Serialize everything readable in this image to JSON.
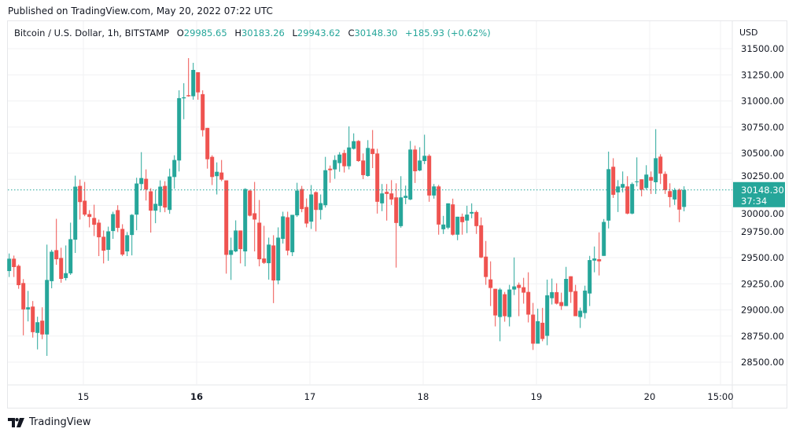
{
  "published": "Published on TradingView.com, May 20, 2022 07:22 UTC",
  "legend": {
    "symbol": "Bitcoin / U.S. Dollar, 1h, BITSTAMP",
    "open_label": "O",
    "open": "29985.65",
    "high_label": "H",
    "high": "30183.26",
    "low_label": "L",
    "low": "29943.62",
    "close_label": "C",
    "close": "30148.30",
    "change": "+185.93 (+0.62%)"
  },
  "currency": "USD",
  "last_price": {
    "price": "30148.30",
    "countdown": "37:34"
  },
  "footer": {
    "brand": "TradingView",
    "logo_icon": "tradingview-logo-icon"
  },
  "colors": {
    "up": "#26a69a",
    "down": "#ef5350",
    "grid": "#f0f1f3"
  },
  "chart_data": {
    "type": "candlestick",
    "interval": "1h",
    "ylim": [
      28250,
      31700
    ],
    "price_ticks": [
      "28500.00",
      "28750.00",
      "29000.00",
      "29250.00",
      "29500.00",
      "29750.00",
      "30000.00",
      "30250.00",
      "30500.00",
      "30750.00",
      "31000.00",
      "31250.00",
      "31500.00"
    ],
    "time_ticks": [
      {
        "label": "15",
        "hour": 16,
        "bold": false
      },
      {
        "label": "16",
        "hour": 40,
        "bold": true
      },
      {
        "label": "17",
        "hour": 64,
        "bold": false
      },
      {
        "label": "18",
        "hour": 88,
        "bold": false
      },
      {
        "label": "19",
        "hour": 112,
        "bold": false
      },
      {
        "label": "20",
        "hour": 136,
        "bold": false
      },
      {
        "label": "15:00",
        "hour": 151,
        "bold": false
      }
    ],
    "grid": true,
    "ohlc": [
      [
        29372,
        29540,
        29315,
        29490
      ],
      [
        29490,
        29520,
        29315,
        29410
      ],
      [
        29422,
        29435,
        29202,
        29237
      ],
      [
        29257,
        29295,
        28757,
        29005
      ],
      [
        29005,
        29182,
        28890,
        29025
      ],
      [
        29032,
        29085,
        28735,
        28787
      ],
      [
        28780,
        28935,
        28622,
        28882
      ],
      [
        28897,
        29025,
        28720,
        28765
      ],
      [
        28765,
        29625,
        28560,
        29287
      ],
      [
        29275,
        29575,
        29207,
        29557
      ],
      [
        29572,
        29872,
        29432,
        29485
      ],
      [
        29497,
        29595,
        29260,
        29297
      ],
      [
        29305,
        29617,
        29282,
        29352
      ],
      [
        29350,
        29835,
        29335,
        29677
      ],
      [
        29672,
        30285,
        29545,
        30180
      ],
      [
        30187,
        30247,
        29865,
        30032
      ],
      [
        30045,
        30225,
        29897,
        29912
      ],
      [
        29917,
        29955,
        29790,
        29890
      ],
      [
        29880,
        30007,
        29707,
        29815
      ],
      [
        29835,
        29865,
        29515,
        29695
      ],
      [
        29700,
        29760,
        29445,
        29567
      ],
      [
        29575,
        29797,
        29470,
        29752
      ],
      [
        29755,
        29940,
        29680,
        29917
      ],
      [
        29955,
        30002,
        29745,
        29785
      ],
      [
        29775,
        29820,
        29515,
        29530
      ],
      [
        29560,
        29745,
        29515,
        29715
      ],
      [
        29717,
        29917,
        29522,
        29910
      ],
      [
        29912,
        30265,
        29762,
        30210
      ],
      [
        30205,
        30510,
        30145,
        30262
      ],
      [
        30255,
        30345,
        30047,
        30152
      ],
      [
        30135,
        30165,
        29740,
        29950
      ],
      [
        29950,
        30150,
        29830,
        30015
      ],
      [
        29995,
        30240,
        29935,
        30180
      ],
      [
        30187,
        30232,
        29935,
        29980
      ],
      [
        29957,
        30352,
        29920,
        30277
      ],
      [
        30272,
        30480,
        30160,
        30435
      ],
      [
        30430,
        31102,
        30325,
        31027
      ],
      [
        31025,
        31170,
        30825,
        31035
      ],
      [
        31055,
        31410,
        31040,
        31045
      ],
      [
        31045,
        31365,
        31012,
        31297
      ],
      [
        31275,
        31275,
        31012,
        31082
      ],
      [
        31065,
        31102,
        30660,
        30720
      ],
      [
        30742,
        30742,
        30352,
        30442
      ],
      [
        30465,
        30480,
        30195,
        30272
      ],
      [
        30280,
        30412,
        30105,
        30322
      ],
      [
        30315,
        30435,
        30232,
        30247
      ],
      [
        30240,
        30240,
        29347,
        29527
      ],
      [
        29527,
        29692,
        29287,
        29572
      ],
      [
        29560,
        29857,
        29552,
        29760
      ],
      [
        29760,
        29760,
        29445,
        29582
      ],
      [
        29560,
        30165,
        29417,
        30157
      ],
      [
        30142,
        30150,
        29895,
        29902
      ],
      [
        29925,
        30225,
        29560,
        29865
      ],
      [
        29835,
        30052,
        29417,
        29485
      ],
      [
        29492,
        29805,
        29440,
        29450
      ],
      [
        29447,
        29692,
        29290,
        29625
      ],
      [
        29617,
        29715,
        29065,
        29282
      ],
      [
        29282,
        29790,
        29245,
        29692
      ],
      [
        29680,
        29940,
        29635,
        29895
      ],
      [
        29887,
        29940,
        29522,
        29567
      ],
      [
        29552,
        29910,
        29515,
        29910
      ],
      [
        29905,
        30217,
        29890,
        30142
      ],
      [
        30157,
        30187,
        29935,
        29965
      ],
      [
        29985,
        30067,
        29790,
        29827
      ],
      [
        29845,
        30195,
        29775,
        30105
      ],
      [
        30127,
        30135,
        29752,
        29957
      ],
      [
        29957,
        30105,
        29865,
        30022
      ],
      [
        30002,
        30465,
        29980,
        30337
      ],
      [
        30352,
        30382,
        30217,
        30337
      ],
      [
        30345,
        30480,
        30255,
        30435
      ],
      [
        30405,
        30510,
        30322,
        30487
      ],
      [
        30502,
        30532,
        30315,
        30375
      ],
      [
        30375,
        30757,
        30345,
        30555
      ],
      [
        30542,
        30690,
        30535,
        30615
      ],
      [
        30617,
        30625,
        30417,
        30425
      ],
      [
        30430,
        30497,
        30252,
        30290
      ],
      [
        30282,
        30625,
        30275,
        30550
      ],
      [
        30542,
        30722,
        30357,
        30492
      ],
      [
        30497,
        30542,
        29922,
        30035
      ],
      [
        30020,
        30205,
        29945,
        30115
      ],
      [
        30130,
        30205,
        29855,
        30110
      ],
      [
        30115,
        30242,
        30005,
        30057
      ],
      [
        30077,
        30212,
        29405,
        29832
      ],
      [
        29802,
        30280,
        29787,
        30077
      ],
      [
        30072,
        30190,
        30012,
        30092
      ],
      [
        30057,
        30617,
        30050,
        30535
      ],
      [
        30535,
        30572,
        30215,
        30327
      ],
      [
        30335,
        30557,
        30327,
        30430
      ],
      [
        30425,
        30677,
        30395,
        30475
      ],
      [
        30475,
        30490,
        30035,
        30095
      ],
      [
        30095,
        30205,
        30065,
        30182
      ],
      [
        30182,
        30197,
        29720,
        29817
      ],
      [
        29772,
        29900,
        29727,
        29817
      ],
      [
        29787,
        30020,
        29772,
        30020
      ],
      [
        30010,
        30065,
        29712,
        29720
      ],
      [
        29720,
        29892,
        29667,
        29892
      ],
      [
        29892,
        29922,
        29720,
        29840
      ],
      [
        29855,
        29997,
        29735,
        29912
      ],
      [
        29922,
        30020,
        29877,
        29937
      ],
      [
        29937,
        29952,
        29727,
        29802
      ],
      [
        29810,
        29885,
        29495,
        29502
      ],
      [
        29510,
        29660,
        29240,
        29315
      ],
      [
        29292,
        29465,
        29037,
        29210
      ],
      [
        29202,
        29202,
        28842,
        28947
      ],
      [
        28932,
        29210,
        28700,
        29195
      ],
      [
        29150,
        29172,
        28887,
        28940
      ],
      [
        28932,
        29240,
        28842,
        29195
      ],
      [
        29195,
        29502,
        29142,
        29225
      ],
      [
        29240,
        29262,
        28940,
        29210
      ],
      [
        29217,
        29307,
        29060,
        29165
      ],
      [
        29172,
        29360,
        28880,
        28955
      ],
      [
        28955,
        29067,
        28617,
        28677
      ],
      [
        28677,
        29012,
        28677,
        28892
      ],
      [
        28877,
        29020,
        28700,
        28722
      ],
      [
        28752,
        29290,
        28662,
        29140
      ],
      [
        29112,
        29300,
        29052,
        29170
      ],
      [
        29170,
        29255,
        29052,
        29060
      ],
      [
        29075,
        29165,
        29000,
        29037
      ],
      [
        29037,
        29412,
        29037,
        29297
      ],
      [
        29322,
        29322,
        29067,
        29172
      ],
      [
        29180,
        29240,
        28940,
        28940
      ],
      [
        28932,
        29022,
        28827,
        28992
      ],
      [
        28970,
        29232,
        28917,
        29185
      ],
      [
        29157,
        29517,
        29037,
        29477
      ],
      [
        29472,
        29607,
        29360,
        29492
      ],
      [
        29485,
        29742,
        29330,
        29465
      ],
      [
        29517,
        29870,
        29517,
        29842
      ],
      [
        29855,
        30515,
        29780,
        30347
      ],
      [
        30370,
        30452,
        30072,
        30102
      ],
      [
        30125,
        30242,
        29937,
        30182
      ],
      [
        30170,
        30325,
        30125,
        30205
      ],
      [
        30182,
        30280,
        29915,
        29922
      ],
      [
        29922,
        30220,
        29915,
        30205
      ],
      [
        30225,
        30460,
        30182,
        30230
      ],
      [
        30250,
        30250,
        30087,
        30150
      ],
      [
        30167,
        30385,
        30150,
        30295
      ],
      [
        30272,
        30325,
        30110,
        30237
      ],
      [
        30222,
        30730,
        30110,
        30452
      ],
      [
        30467,
        30490,
        30205,
        30305
      ],
      [
        30302,
        30325,
        30110,
        30147
      ],
      [
        30137,
        30212,
        29982,
        30080
      ],
      [
        30057,
        30167,
        30005,
        30147
      ],
      [
        30150,
        30162,
        29840,
        29960
      ],
      [
        29985.65,
        30183.26,
        29943.62,
        30148.3
      ]
    ]
  }
}
